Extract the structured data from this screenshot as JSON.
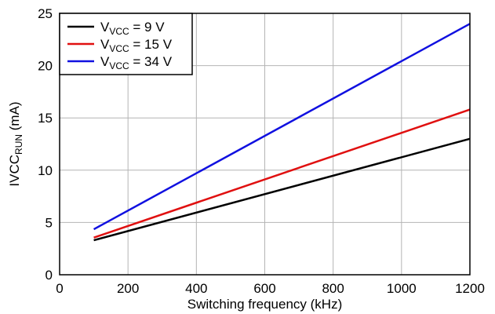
{
  "chart_data": {
    "type": "line",
    "title": "",
    "xlabel": "Switching frequency (kHz)",
    "ylabel": {
      "main": "IVCC",
      "subscript": "RUN",
      "suffix": " (mA)"
    },
    "xlim": [
      0,
      1200
    ],
    "ylim": [
      0,
      25
    ],
    "x_ticks": [
      "0",
      "200",
      "400",
      "600",
      "800",
      "1000",
      "1200"
    ],
    "y_ticks": [
      "0",
      "5",
      "10",
      "15",
      "20",
      "25"
    ],
    "grid": true,
    "legend_position": "top-left",
    "series": [
      {
        "name": "V_VCC = 9 V",
        "label_main": "V",
        "label_sub": "VCC",
        "label_rest": " = 9 V",
        "color": "#000000",
        "x": [
          100,
          1200
        ],
        "y": [
          3.3,
          13.0
        ]
      },
      {
        "name": "V_VCC = 15 V",
        "label_main": "V",
        "label_sub": "VCC",
        "label_rest": " = 15 V",
        "color": "#e01010",
        "x": [
          100,
          1200
        ],
        "y": [
          3.55,
          15.8
        ]
      },
      {
        "name": "V_VCC = 34 V",
        "label_main": "V",
        "label_sub": "VCC",
        "label_rest": " = 34 V",
        "color": "#1010e0",
        "x": [
          100,
          1200
        ],
        "y": [
          4.35,
          24.0
        ]
      }
    ]
  }
}
